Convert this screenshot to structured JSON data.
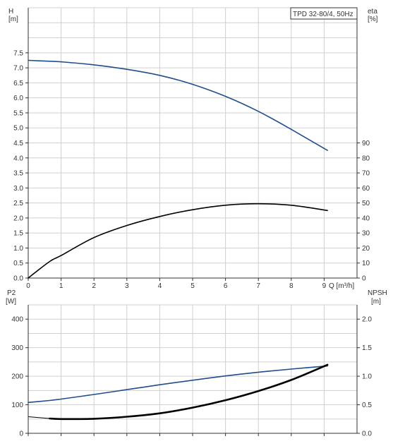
{
  "chart_data": {
    "type": "line",
    "title": "TPD 32-80/4, 50Hz",
    "colors": {
      "blue": "#1f4e8c",
      "black": "#000000",
      "grid": "#d0d0d0",
      "text": "#333333"
    },
    "top_panel": {
      "xlabel": "Q [m³/h]",
      "x_ticks": [
        "0",
        "1",
        "2",
        "3",
        "4",
        "5",
        "6",
        "7",
        "8",
        "9"
      ],
      "xlim": [
        0,
        10
      ],
      "left_axis": {
        "label_line1": "H",
        "label_line2": "[m]",
        "ylim": [
          0,
          9
        ],
        "ticks": [
          "0.0",
          "0.5",
          "1.0",
          "1.5",
          "2.0",
          "2.5",
          "3.0",
          "3.5",
          "4.0",
          "4.5",
          "5.0",
          "5.5",
          "6.0",
          "6.5",
          "7.0",
          "7.5"
        ]
      },
      "right_axis": {
        "label_line1": "eta",
        "label_line2": "[%]",
        "ylim": [
          0,
          180
        ],
        "ticks": [
          "0",
          "10",
          "20",
          "30",
          "40",
          "50",
          "60",
          "70",
          "80",
          "90"
        ]
      },
      "series": [
        {
          "axis": "left",
          "color": "#1f4e8c",
          "style": "solid",
          "x": [
            0,
            0.6,
            1,
            2,
            3,
            4,
            5,
            6,
            7,
            8,
            9.1
          ],
          "y": [
            7.25,
            7.22,
            7.2,
            7.1,
            6.95,
            6.75,
            6.45,
            6.05,
            5.55,
            4.95,
            4.25
          ]
        },
        {
          "axis": "right",
          "color": "#000000",
          "style": "solid",
          "x": [
            0,
            0.65,
            1,
            2,
            3,
            4,
            5,
            6,
            7,
            8,
            9.1
          ],
          "y": [
            0,
            11,
            15,
            27,
            35,
            41,
            45.5,
            48.5,
            49.5,
            48.5,
            45
          ]
        }
      ]
    },
    "bottom_panel": {
      "xlim": [
        0,
        10
      ],
      "left_axis": {
        "label_line1": "P2",
        "label_line2": "[W]",
        "ylim": [
          0,
          450
        ],
        "ticks": [
          "0",
          "100",
          "200",
          "300",
          "400"
        ]
      },
      "right_axis": {
        "label_line1": "NPSH",
        "label_line2": "[m]",
        "ylim": [
          0,
          2.25
        ],
        "ticks": [
          "0.0",
          "0.5",
          "1.0",
          "1.5",
          "2.0"
        ]
      },
      "series": [
        {
          "axis": "left",
          "color": "#1f4e8c",
          "style": "solid",
          "x": [
            0,
            0.65,
            1,
            2,
            3,
            4,
            5,
            6,
            7,
            8,
            9.1
          ],
          "y": [
            108,
            115,
            120,
            136,
            153,
            170,
            186,
            201,
            214,
            225,
            236
          ]
        },
        {
          "axis": "left",
          "color": "#000000",
          "style": "thin",
          "x": [
            0,
            0.65
          ],
          "y": [
            58,
            52
          ]
        },
        {
          "axis": "left",
          "color": "#000000",
          "style": "thick",
          "x": [
            0.65,
            1,
            2,
            3,
            4,
            5,
            6,
            7,
            8,
            9.1
          ],
          "y": [
            52,
            50,
            51,
            58,
            70,
            90,
            116,
            148,
            187,
            240
          ]
        }
      ]
    }
  }
}
